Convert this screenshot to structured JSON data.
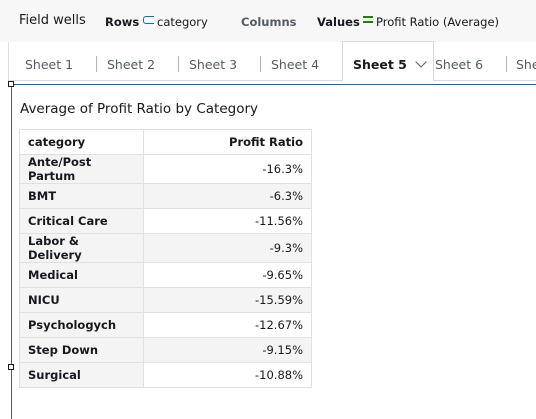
{
  "field_wells": {
    "title": "Field wells",
    "rows_label": "Rows",
    "rows_value": "category",
    "columns_label": "Columns",
    "values_label": "Values",
    "values_value": "Profit Ratio (Average)"
  },
  "tabs": [
    "Sheet 1",
    "Sheet 2",
    "Sheet 3",
    "Sheet 4",
    "Sheet 5",
    "Sheet 6",
    "Shee"
  ],
  "active_tab": "Sheet 5",
  "visual": {
    "title": "Average of Profit Ratio by Category",
    "columns": [
      "category",
      "Profit Ratio"
    ],
    "rows": [
      {
        "category": "Ante/Post Partum",
        "value": "-16.3%"
      },
      {
        "category": "BMT",
        "value": "-6.3%"
      },
      {
        "category": "Critical Care",
        "value": "-11.56%"
      },
      {
        "category": "Labor & Delivery",
        "value": "-9.3%"
      },
      {
        "category": "Medical",
        "value": "-9.65%"
      },
      {
        "category": "NICU",
        "value": "-15.59%"
      },
      {
        "category": "Psychologych",
        "value": "-12.67%"
      },
      {
        "category": "Step Down",
        "value": "-9.15%"
      },
      {
        "category": "Surgical",
        "value": "-10.88%"
      }
    ]
  },
  "colors": {
    "accent": "#0073bb",
    "values_icon": "#1d8102",
    "wells_bg": "#f7f7f7",
    "zebra": "#f4f4f4"
  }
}
